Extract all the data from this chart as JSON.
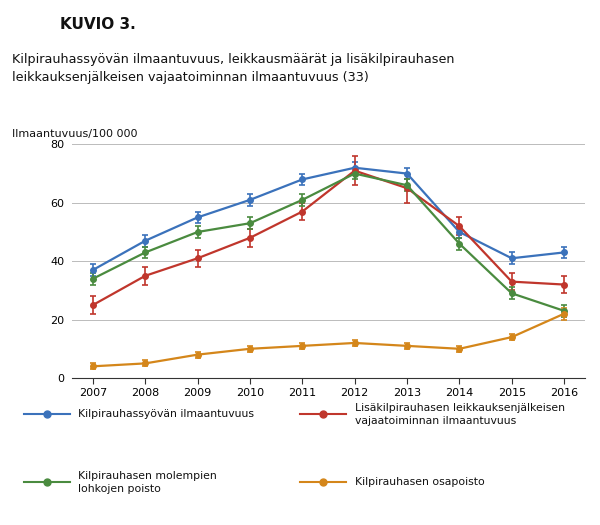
{
  "title_main": "Kilpirauhassyövän ilmaantuvuus, leikkausmäärät ja lisäkilpirauhasen\nleikkauksenjälkeisen vajaatoiminnan ilmaantuvuus (33)",
  "header": "KUVIO 3.",
  "ylabel": "Ilmaantuvuus/100 000",
  "years": [
    2007,
    2008,
    2009,
    2010,
    2011,
    2012,
    2013,
    2014,
    2015,
    2016
  ],
  "series": {
    "blue": {
      "label": "Kilpirauhassyövän ilmaantuvuus",
      "color": "#3B72BB",
      "values": [
        37,
        47,
        55,
        61,
        68,
        72,
        70,
        50,
        41,
        43
      ],
      "errors": [
        2,
        2,
        2,
        2,
        2,
        2,
        2,
        2,
        2,
        2
      ]
    },
    "red": {
      "label": "Lisäkilpirauhasen leikkauksenjälkeisen\nvajaatoiminnan ilmaantuvuus",
      "color": "#C0362C",
      "values": [
        25,
        35,
        41,
        48,
        57,
        71,
        65,
        52,
        33,
        32
      ],
      "errors": [
        3,
        3,
        3,
        3,
        3,
        5,
        5,
        3,
        3,
        3
      ]
    },
    "green": {
      "label": "Kilpirauhasen molempien\nlohkojen poisto",
      "color": "#4A8B3F",
      "values": [
        34,
        43,
        50,
        53,
        61,
        70,
        66,
        46,
        29,
        23
      ],
      "errors": [
        2,
        2,
        2,
        2,
        2,
        2,
        2,
        2,
        2,
        2
      ]
    },
    "orange": {
      "label": "Kilpirauhasen osapoisto",
      "color": "#D4861A",
      "values": [
        4,
        5,
        8,
        10,
        11,
        12,
        11,
        10,
        14,
        22
      ],
      "errors": [
        1,
        1,
        1,
        1,
        1,
        1,
        1,
        1,
        1,
        2
      ]
    }
  },
  "ylim": [
    0,
    80
  ],
  "yticks": [
    0,
    20,
    40,
    60,
    80
  ],
  "bg_color": "#FFFFFF",
  "header_bg": "#5BB8D4",
  "grid_color": "#BBBBBB",
  "series_order": [
    "blue",
    "red",
    "green",
    "orange"
  ]
}
